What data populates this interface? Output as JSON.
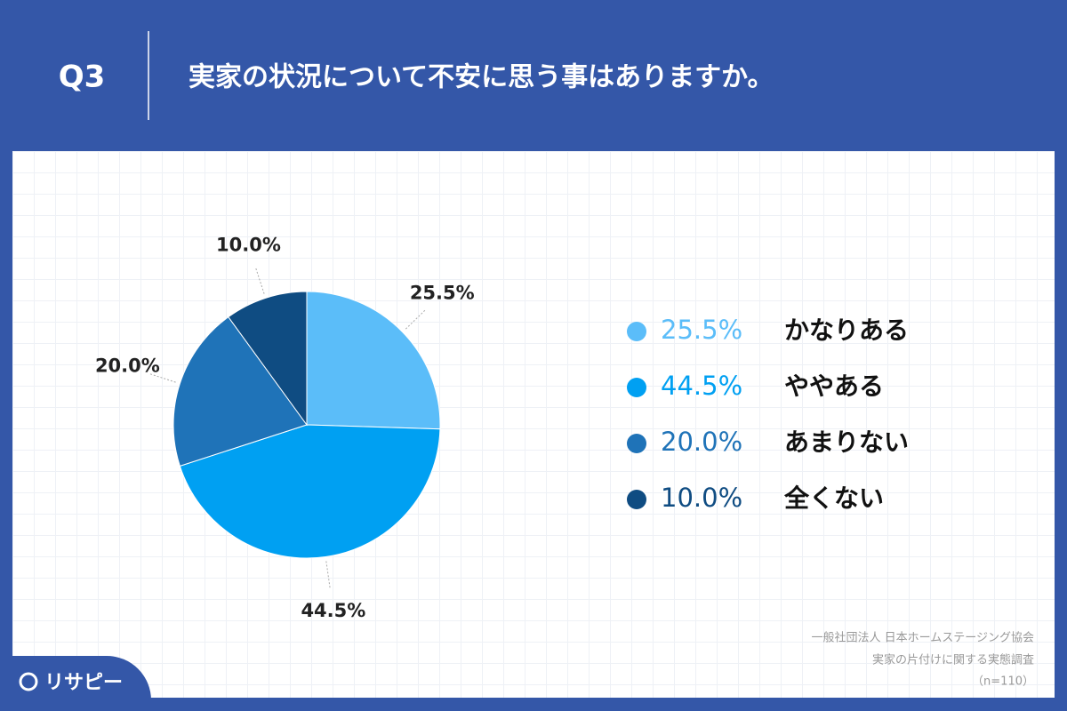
{
  "question": "Q3",
  "chart_data": {
    "type": "pie",
    "title": "実家の状況について不安に思う事はありますか。",
    "categories": [
      "かなりある",
      "ややある",
      "あまりない",
      "全くない"
    ],
    "values": [
      25.5,
      44.5,
      20.0,
      10.0
    ],
    "value_labels": [
      "25.5%",
      "44.5%",
      "20.0%",
      "10.0%"
    ],
    "colors": [
      "#5bbdf9",
      "#00a0f2",
      "#1f73b8",
      "#0f4c82"
    ]
  },
  "source": [
    "一般社団法人 日本ホームステージング協会",
    "実家の片付けに関する実態調査",
    "（n=110）"
  ],
  "logo": "リサピー"
}
